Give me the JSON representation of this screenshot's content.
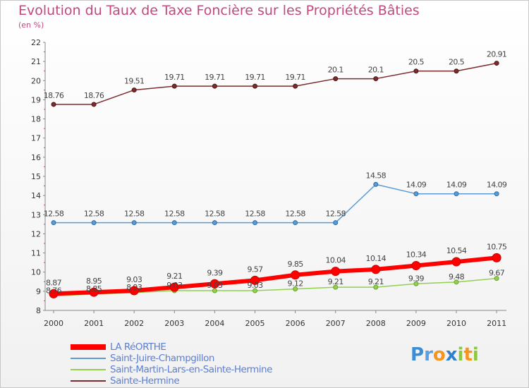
{
  "chart_data": {
    "type": "line",
    "title": "Evolution du Taux de Taxe Foncière sur les Propriétés Bâties",
    "subtitle": "(en %)",
    "x": [
      "2000",
      "2001",
      "2002",
      "2003",
      "2004",
      "2005",
      "2006",
      "2007",
      "2008",
      "2009",
      "2010",
      "2011"
    ],
    "ylim": [
      8,
      22
    ],
    "yticks": [
      "8",
      "9",
      "10",
      "11",
      "12",
      "13",
      "14",
      "15",
      "16",
      "17",
      "18",
      "19",
      "20",
      "21",
      "22"
    ],
    "grid": false,
    "legend_position": "bottom-left",
    "series": [
      {
        "name": "LA RéORTHE",
        "color": "#ff0000",
        "values": [
          8.87,
          8.95,
          9.03,
          9.21,
          9.39,
          9.57,
          9.85,
          10.04,
          10.14,
          10.34,
          10.54,
          10.75
        ],
        "labels": [
          "8.87",
          "8.95",
          "9.03",
          "9.21",
          "9.39",
          "9.57",
          "9.85",
          "10.04",
          "10.14",
          "10.34",
          "10.54",
          "10.75"
        ]
      },
      {
        "name": "Saint-Juire-Champgillon",
        "color": "#5b9bd5",
        "values": [
          12.58,
          12.58,
          12.58,
          12.58,
          12.58,
          12.58,
          12.58,
          12.58,
          14.58,
          14.09,
          14.09,
          14.09
        ],
        "labels": [
          "12.58",
          "12.58",
          "12.58",
          "12.58",
          "12.58",
          "12.58",
          "12.58",
          "12.58",
          "14.58",
          "14.09",
          "14.09",
          "14.09"
        ]
      },
      {
        "name": "Saint-Martin-Lars-en-Sainte-Hermine",
        "color": "#92d050",
        "values": [
          8.76,
          8.85,
          8.93,
          9.03,
          9.03,
          9.03,
          9.12,
          9.21,
          9.21,
          9.39,
          9.48,
          9.67
        ],
        "labels": [
          "8.76",
          "8.85",
          "8.93",
          "9.03",
          "9.03",
          "9.03",
          "9.12",
          "9.21",
          "9.21",
          "9.39",
          "9.48",
          "9.67"
        ]
      },
      {
        "name": "Sainte-Hermine",
        "color": "#7b2c2c",
        "values": [
          18.76,
          18.76,
          19.51,
          19.71,
          19.71,
          19.71,
          19.71,
          20.1,
          20.1,
          20.5,
          20.5,
          20.91
        ],
        "labels": [
          "18.76",
          "18.76",
          "19.51",
          "19.71",
          "19.71",
          "19.71",
          "19.71",
          "20.1",
          "20.1",
          "20.5",
          "20.5",
          "20.91"
        ]
      }
    ]
  },
  "legend": {
    "items": [
      {
        "label": "LA RéORTHE",
        "color": "#ff0000",
        "text_color": "#5b7fd5"
      },
      {
        "label": "Saint-Juire-Champgillon",
        "color": "#5b9bd5",
        "text_color": "#5b7fd5"
      },
      {
        "label": "Saint-Martin-Lars-en-Sainte-Hermine",
        "color": "#92d050",
        "text_color": "#5b7fd5"
      },
      {
        "label": "Sainte-Hermine",
        "color": "#7b2c2c",
        "text_color": "#5b7fd5"
      }
    ]
  },
  "logo": {
    "letters": [
      "P",
      "r",
      "o",
      "x",
      "i",
      "t",
      "i"
    ],
    "colors": [
      "#3a8ed6",
      "#5aa0e0",
      "#f7941d",
      "#2e7fcf",
      "#8dc63f",
      "#f7941d",
      "#8dc63f"
    ]
  }
}
